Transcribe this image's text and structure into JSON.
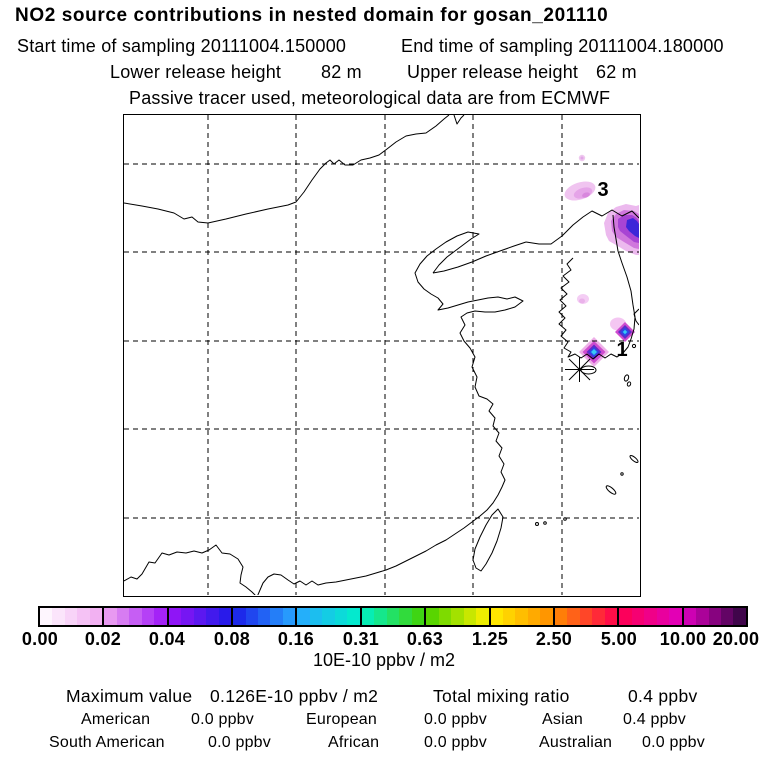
{
  "header": {
    "title": "NO2 source contributions in nested domain for gosan_201110",
    "start_time": "Start time of sampling 20111004.150000",
    "end_time": "End time of sampling 20111004.180000",
    "lower_release_label": "Lower release height",
    "lower_release_value": "82 m",
    "upper_release_label": "Upper release height",
    "upper_release_value": "62 m",
    "tracer_note": "Passive tracer used, meteorological data are from ECMWF"
  },
  "chart_data": {
    "type": "heatmap",
    "title": "NO2 source contributions in nested domain for gosan_201110",
    "map_region": "East Asia (China, Korea, Japan, Taiwan) nested model domain",
    "grid": {
      "style": "dashed",
      "vertical_lines": 5,
      "horizontal_lines": 5,
      "tick_labels_shown": false
    },
    "colorbar": {
      "tick_labels": [
        "0.00",
        "0.02",
        "0.04",
        "0.08",
        "0.16",
        "0.31",
        "0.63",
        "1.25",
        "2.50",
        "5.00",
        "10.00",
        "20.00"
      ],
      "unit": "10E-10 ppbv / m2",
      "cells_per_segment": 5,
      "boundary_colors": [
        "#ffffff",
        "#f0a8f0",
        "#9c14f8",
        "#1c1ce8",
        "#28a8ff",
        "#00f0c8",
        "#46d200",
        "#fff000",
        "#ff8c00",
        "#ff0050",
        "#e000c0",
        "#2e063e"
      ]
    },
    "hotspots": [
      {
        "label": "3",
        "location": "northeast of Korea, Primorye coast",
        "peak_color": "#d887dd",
        "approx_value": "0.01-0.03"
      },
      {
        "label": "1",
        "location": "south coast of Korea near Busan / Jeju",
        "peak_color": "#38c9f5",
        "approx_value": "0.08-0.13"
      }
    ],
    "receptor_marker": {
      "symbol": "star",
      "site": "gosan"
    },
    "maximum_value": "0.126E-10 ppbv / m2",
    "total_mixing_ratio": "0.4 ppbv",
    "contributions": [
      {
        "region": "American",
        "value": "0.0 ppbv"
      },
      {
        "region": "European",
        "value": "0.0 ppbv"
      },
      {
        "region": "Asian",
        "value": "0.4 ppbv"
      },
      {
        "region": "South American",
        "value": "0.0 ppbv"
      },
      {
        "region": "African",
        "value": "0.0 ppbv"
      },
      {
        "region": "Australian",
        "value": "0.0 ppbv"
      }
    ]
  },
  "footer": {
    "maximum_label": "Maximum value",
    "total_label": "Total mixing ratio"
  }
}
